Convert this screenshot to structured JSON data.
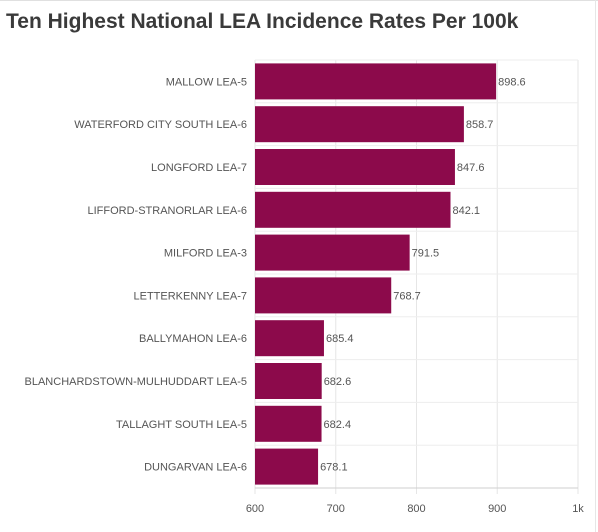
{
  "title": "Ten Highest National LEA Incidence Rates Per 100k",
  "chart_data": {
    "type": "bar",
    "orientation": "horizontal",
    "title": "Ten Highest National LEA Incidence Rates Per 100k",
    "xlabel": "",
    "ylabel": "",
    "categories": [
      "MALLOW LEA-5",
      "WATERFORD CITY SOUTH LEA-6",
      "LONGFORD LEA-7",
      "LIFFORD-STRANORLAR LEA-6",
      "MILFORD LEA-3",
      "LETTERKENNY LEA-7",
      "BALLYMAHON LEA-6",
      "BLANCHARDSTOWN-MULHUDDART LEA-5",
      "TALLAGHT SOUTH LEA-5",
      "DUNGARVAN LEA-6"
    ],
    "values": [
      898.6,
      858.7,
      847.6,
      842.1,
      791.5,
      768.7,
      685.4,
      682.6,
      682.4,
      678.1
    ],
    "value_labels": [
      "898.6",
      "858.7",
      "847.6",
      "842.1",
      "791.5",
      "768.7",
      "685.4",
      "682.6",
      "682.4",
      "678.1"
    ],
    "xlim": [
      600,
      1000
    ],
    "x_ticks": [
      600,
      700,
      800,
      900,
      1000
    ],
    "x_tick_labels": [
      "600",
      "700",
      "800",
      "900",
      "1k"
    ],
    "grid": true,
    "bar_color": "#8c0a4b"
  }
}
